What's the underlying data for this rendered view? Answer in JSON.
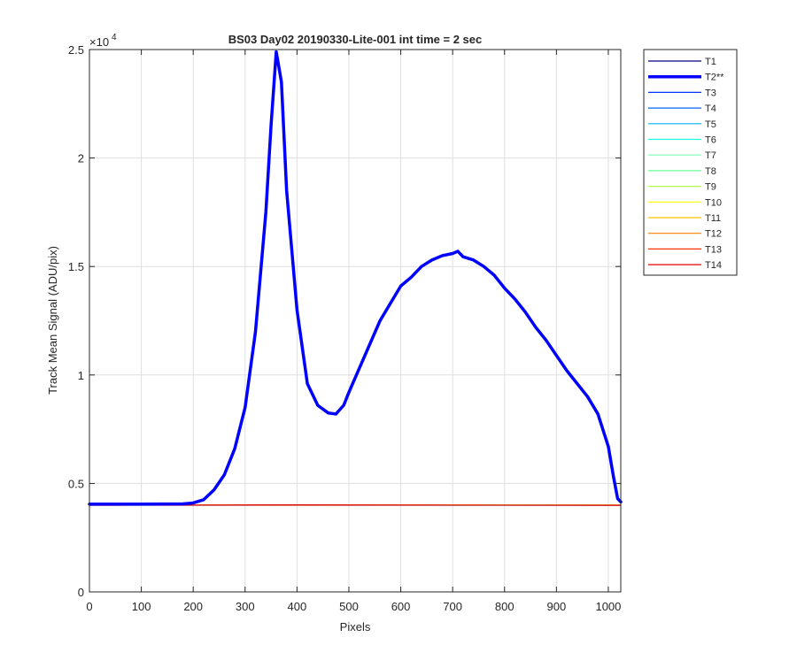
{
  "chart_data": {
    "type": "line",
    "title": "BS03 Day02 20190330-Lite-001 int time = 2 sec",
    "xlabel": "Pixels",
    "ylabel": "Track Mean Signal (ADU/pix)",
    "xlim": [
      0,
      1024
    ],
    "ylim": [
      0,
      25000
    ],
    "xticks": [
      0,
      100,
      200,
      300,
      400,
      500,
      600,
      700,
      800,
      900,
      1000
    ],
    "xtick_labels": [
      "0",
      "100",
      "200",
      "300",
      "400",
      "500",
      "600",
      "700",
      "800",
      "900",
      "1000"
    ],
    "yticks": [
      0,
      5000,
      10000,
      15000,
      20000,
      25000
    ],
    "ytick_labels": [
      "0",
      "0.5",
      "1",
      "1.5",
      "2",
      "2.5"
    ],
    "y_exponent_base": "×10",
    "y_exponent_power": "4",
    "grid": true,
    "legend_position": "outside-top-right",
    "series": [
      {
        "name": "T1",
        "color": "#00007F",
        "highlight": false,
        "x": [
          0,
          1024
        ],
        "y": [
          3990,
          3990
        ]
      },
      {
        "name": "T2**",
        "color": "#0000FF",
        "highlight": true,
        "x": [
          0,
          100,
          180,
          200,
          220,
          240,
          260,
          280,
          300,
          320,
          340,
          350,
          360,
          370,
          380,
          400,
          420,
          440,
          460,
          475,
          490,
          500,
          520,
          540,
          560,
          580,
          600,
          620,
          640,
          660,
          680,
          700,
          710,
          720,
          740,
          760,
          780,
          800,
          820,
          840,
          860,
          880,
          900,
          920,
          940,
          960,
          980,
          1000,
          1010,
          1018,
          1024
        ],
        "y": [
          4050,
          4050,
          4060,
          4100,
          4250,
          4700,
          5400,
          6600,
          8500,
          12000,
          17500,
          21500,
          24900,
          23500,
          18500,
          13000,
          9600,
          8600,
          8250,
          8200,
          8600,
          9200,
          10300,
          11400,
          12500,
          13300,
          14100,
          14500,
          15000,
          15300,
          15500,
          15600,
          15700,
          15450,
          15300,
          15000,
          14600,
          14000,
          13500,
          12900,
          12200,
          11600,
          10900,
          10200,
          9600,
          9000,
          8200,
          6700,
          5300,
          4300,
          4150
        ]
      },
      {
        "name": "T3",
        "color": "#0032FF",
        "highlight": false,
        "x": [
          0,
          1024
        ],
        "y": [
          3995,
          3995
        ]
      },
      {
        "name": "T4",
        "color": "#0066FF",
        "highlight": false,
        "x": [
          0,
          1024
        ],
        "y": [
          4000,
          4000
        ]
      },
      {
        "name": "T5",
        "color": "#00B2FF",
        "highlight": false,
        "x": [
          0,
          1024
        ],
        "y": [
          4000,
          4000
        ]
      },
      {
        "name": "T6",
        "color": "#19FFE5",
        "highlight": false,
        "x": [
          0,
          1024
        ],
        "y": [
          4000,
          4000
        ]
      },
      {
        "name": "T7",
        "color": "#7FFFB2",
        "highlight": false,
        "x": [
          0,
          1024
        ],
        "y": [
          4000,
          4000
        ]
      },
      {
        "name": "T8",
        "color": "#66FF99",
        "highlight": false,
        "x": [
          0,
          1024
        ],
        "y": [
          4000,
          4000
        ]
      },
      {
        "name": "T9",
        "color": "#B2FF4C",
        "highlight": false,
        "x": [
          0,
          1024
        ],
        "y": [
          4000,
          4000
        ]
      },
      {
        "name": "T10",
        "color": "#FFFF00",
        "highlight": false,
        "x": [
          0,
          1024
        ],
        "y": [
          4000,
          4000
        ]
      },
      {
        "name": "T11",
        "color": "#FFC000",
        "highlight": false,
        "x": [
          0,
          1024
        ],
        "y": [
          4000,
          4000
        ]
      },
      {
        "name": "T12",
        "color": "#FF7F00",
        "highlight": false,
        "x": [
          0,
          1024
        ],
        "y": [
          4000,
          4000
        ]
      },
      {
        "name": "T13",
        "color": "#FF3300",
        "highlight": false,
        "x": [
          0,
          1024
        ],
        "y": [
          4000,
          4000
        ]
      },
      {
        "name": "T14",
        "color": "#E50000",
        "highlight": false,
        "x": [
          0,
          100,
          200,
          300,
          400,
          500,
          600,
          700,
          800,
          900,
          1000,
          1024
        ],
        "y": [
          3990,
          3995,
          4000,
          4010,
          4015,
          4010,
          4005,
          4000,
          3995,
          3990,
          3985,
          3985
        ]
      }
    ]
  }
}
